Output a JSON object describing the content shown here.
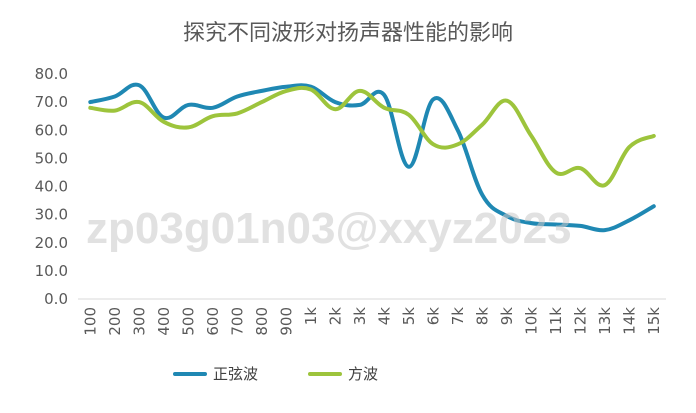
{
  "chart_data": {
    "type": "line",
    "title": "探究不同波形对扬声器性能的影响",
    "watermark": "zp03g01n03@xxyz2023",
    "categories": [
      "100",
      "200",
      "300",
      "400",
      "500",
      "600",
      "700",
      "800",
      "900",
      "1k",
      "2k",
      "3k",
      "4k",
      "5k",
      "6k",
      "7k",
      "8k",
      "9k",
      "10k",
      "11k",
      "12k",
      "13k",
      "14k",
      "15k"
    ],
    "ylim": [
      0,
      80
    ],
    "yticks": [
      "0.0",
      "10.0",
      "20.0",
      "30.0",
      "40.0",
      "50.0",
      "60.0",
      "70.0",
      "80.0"
    ],
    "grid": false,
    "legend_position": "bottom",
    "series": [
      {
        "name": "正弦波",
        "color": "#1f88b3",
        "values": [
          70,
          72,
          76,
          64.5,
          69,
          68,
          72,
          74,
          75.5,
          75.5,
          70,
          69,
          72.5,
          47,
          71,
          60,
          37,
          29.5,
          27,
          26.5,
          26,
          24.5,
          28,
          33
        ]
      },
      {
        "name": "方波",
        "color": "#9dc43c",
        "values": [
          68,
          67,
          70,
          63,
          61,
          65,
          66,
          70,
          74,
          74.5,
          67.5,
          74,
          68,
          65.5,
          55,
          55,
          62,
          70.5,
          58,
          45,
          46.5,
          40.5,
          54,
          58
        ]
      }
    ]
  }
}
